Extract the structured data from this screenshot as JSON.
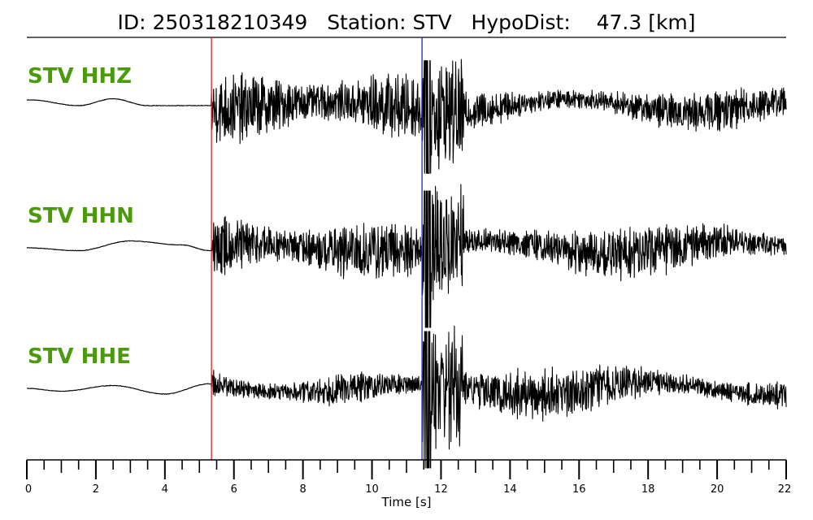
{
  "title": {
    "id_label": "ID:",
    "id_value": "250318210349",
    "station_label": "Station:",
    "station_value": "STV",
    "hypodist_label": "HypoDist:",
    "hypodist_value": "47.3",
    "hypodist_unit": "[km]"
  },
  "colors": {
    "label": "#4a9a0c",
    "trace": "#000000",
    "p_pick": "#e02020",
    "s_pick": "#1f1fcf"
  },
  "chart_data": {
    "type": "line",
    "xlabel": "Time [s]",
    "xlim": [
      0,
      22
    ],
    "major_ticks": [
      0,
      2,
      4,
      6,
      8,
      10,
      12,
      14,
      16,
      18,
      20,
      22
    ],
    "tick_labels": [
      "0",
      "2",
      "4",
      "6",
      "8",
      "10",
      "12",
      "14",
      "16",
      "18",
      "20",
      "22"
    ],
    "minor_tick_step": 0.5,
    "p_pick_time": 5.35,
    "s_pick_time": 11.45,
    "traces": [
      {
        "label": "STV HHZ",
        "pre_event_envelope": [
          [
            0,
            0.1
          ],
          [
            0.1,
            0.1
          ],
          [
            1.5,
            0.0
          ],
          [
            2.5,
            0.12
          ],
          [
            3.5,
            0.0
          ],
          [
            5.3,
            0.0
          ]
        ],
        "p_amplitude": 0.55,
        "s_peak": 0.9,
        "coda_amplitude": 0.4
      },
      {
        "label": "STV HHN",
        "pre_event_envelope": [
          [
            0,
            0.0
          ],
          [
            1.5,
            -0.05
          ],
          [
            3.0,
            0.12
          ],
          [
            4.5,
            0.05
          ],
          [
            5.3,
            -0.05
          ]
        ],
        "p_amplitude": 0.5,
        "s_peak": 1.0,
        "coda_amplitude": 0.5
      },
      {
        "label": "STV HHE",
        "pre_event_envelope": [
          [
            0,
            0.0
          ],
          [
            1.0,
            -0.05
          ],
          [
            2.5,
            0.05
          ],
          [
            4.0,
            -0.1
          ],
          [
            5.3,
            0.08
          ]
        ],
        "p_amplitude": 0.25,
        "s_peak": 1.0,
        "coda_amplitude": 0.45
      }
    ]
  }
}
